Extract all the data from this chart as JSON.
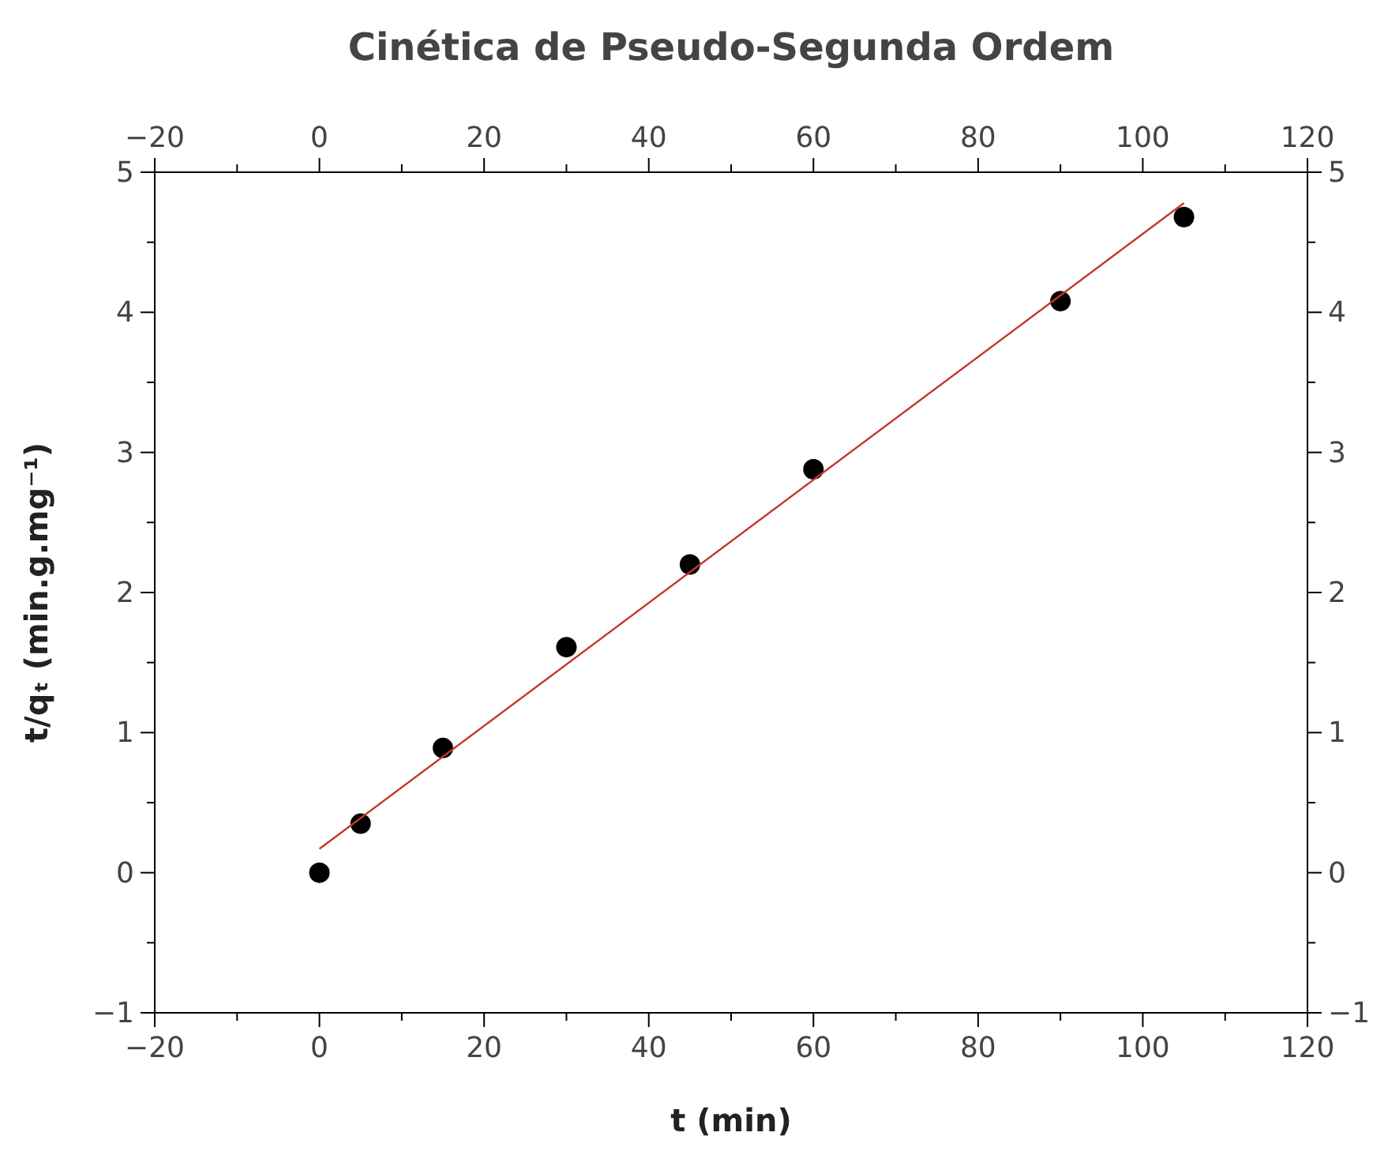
{
  "chart_data": {
    "type": "scatter",
    "title": "Cinética de Pseudo-Segunda Ordem",
    "xlabel": "t (min)",
    "ylabel": "t/qₜ (min.g.mg⁻¹)",
    "xlim": [
      -20,
      120
    ],
    "ylim": [
      -1,
      5
    ],
    "x2lim": [
      -20,
      120
    ],
    "y2lim": [
      -1,
      5
    ],
    "xticks": [
      -20,
      {
        "value": -10,
        "label": null
      },
      0,
      {
        "value": 10,
        "label": null
      },
      20,
      {
        "value": 30,
        "label": null
      },
      40,
      {
        "value": 50,
        "label": null
      },
      60,
      {
        "value": 70,
        "label": null
      },
      80,
      {
        "value": 90,
        "label": null
      },
      100,
      {
        "value": 110,
        "label": null
      },
      120
    ],
    "x2ticks": [
      -20,
      {
        "value": -10,
        "label": null
      },
      0,
      {
        "value": 10,
        "label": null
      },
      20,
      {
        "value": 30,
        "label": null
      },
      40,
      {
        "value": 50,
        "label": null
      },
      60,
      {
        "value": 70,
        "label": null
      },
      80,
      {
        "value": 90,
        "label": null
      },
      100,
      {
        "value": 110,
        "label": null
      },
      120
    ],
    "yticks": [
      -1,
      {
        "value": -0.5,
        "label": null
      },
      0,
      {
        "value": 0.5,
        "label": null
      },
      1,
      {
        "value": 1.5,
        "label": null
      },
      2,
      {
        "value": 2.5,
        "label": null
      },
      3,
      {
        "value": 3.5,
        "label": null
      },
      4,
      {
        "value": 4.5,
        "label": null
      },
      5
    ],
    "y2ticks": [
      -1,
      {
        "value": -0.5,
        "label": null
      },
      0,
      {
        "value": 0.5,
        "label": null
      },
      1,
      {
        "value": 1.5,
        "label": null
      },
      2,
      {
        "value": 2.5,
        "label": null
      },
      3,
      {
        "value": 3.5,
        "label": null
      },
      4,
      {
        "value": 4.5,
        "label": null
      },
      5
    ],
    "grid": false,
    "marker": "circle",
    "series": [
      {
        "color": "#000000",
        "x": [
          0,
          5,
          15,
          30,
          45,
          60,
          90,
          105
        ],
        "values": [
          0,
          0.35,
          0.89,
          1.61,
          2.2,
          2.88,
          4.08,
          4.68
        ]
      },
      {
        "type": "line",
        "color": "#c0392b",
        "x": [
          0,
          105
        ],
        "values": [
          0.17,
          4.78
        ],
        "marker": "none",
        "line_style": "solid"
      }
    ]
  }
}
